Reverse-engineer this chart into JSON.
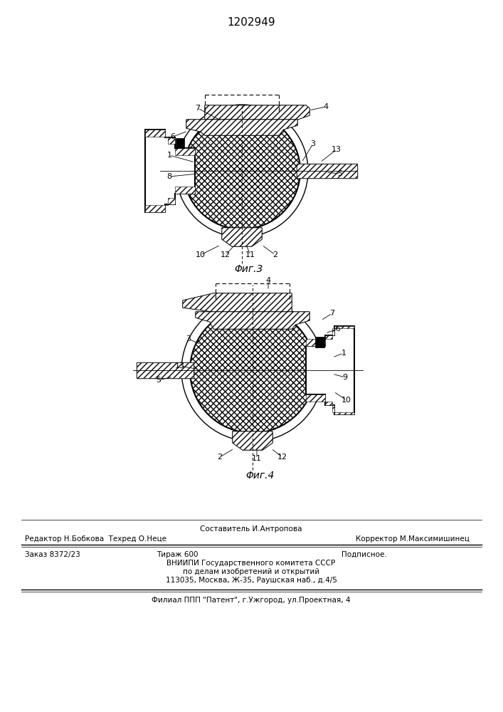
{
  "title": "1202949",
  "fig3_label": "Φиг.3",
  "fig4_label": "Φиг.4",
  "footer_line0": "Составитель И.Антропова",
  "footer_line1a": "Редактор Н.Бобкова  Техред О.Неце",
  "footer_line1b": "Корректор М.Максимишинец",
  "footer_line2a": "Заказ 8372/23",
  "footer_line2b": "Тираж 600",
  "footer_line2c": "Подписное.",
  "footer_line3": "ВНИИПИ Государственного комитета СССР",
  "footer_line4": "по делам изобретений и открытий",
  "footer_line5": "113035, Москва, Ж-35, Раушская наб., д.4/5",
  "footer_line6": "Филиал ППП \"Патент\", г.Ужгород, ул.Проектная, 4",
  "bg_color": "#ffffff",
  "line_color": "#000000"
}
